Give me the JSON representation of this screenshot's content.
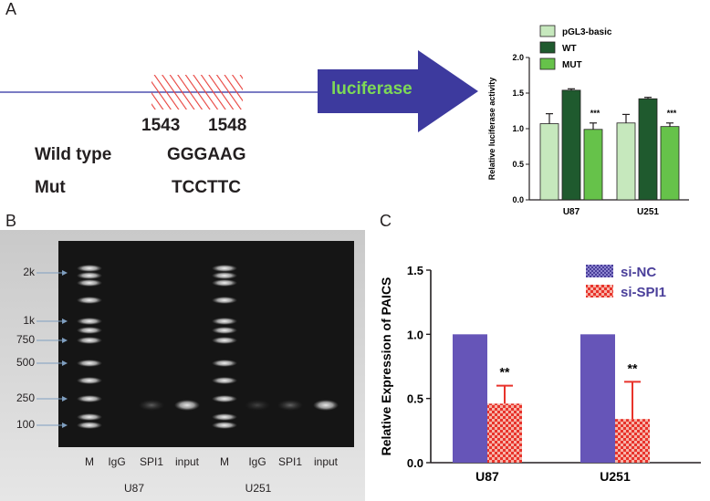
{
  "panels": {
    "a": {
      "letter": "A",
      "positions": [
        "1543",
        "1548"
      ],
      "rows": [
        {
          "label": "Wild type",
          "sequence": "GGGAAG"
        },
        {
          "label": "Mut",
          "sequence": "TCCTTC"
        }
      ],
      "arrow_label": "luciferase"
    },
    "b": {
      "letter": "B",
      "ladder": [
        "2k",
        "1k",
        "750",
        "500",
        "250",
        "100"
      ],
      "lanes": [
        "M",
        "IgG",
        "SPI1",
        "input",
        "M",
        "IgG",
        "SPI1",
        "input"
      ],
      "groups": [
        "U87",
        "U251"
      ]
    },
    "c": {
      "letter": "C"
    }
  },
  "colors": {
    "line_blue": "#2b2fa0",
    "arrow_blue": "#3d3a9e",
    "arrow_text": "#7ed957",
    "hatch_red": "#e8413c",
    "pgl3": "#c6e8bd",
    "wt": "#1f5a2e",
    "mut": "#66c24a",
    "sinc": "#6655b8",
    "spi1": "#e8332b"
  },
  "chart_data": [
    {
      "type": "bar",
      "ylabel": "Relative luciferase activity",
      "categories": [
        "U87",
        "U251"
      ],
      "ylim": [
        0.0,
        2.0
      ],
      "yticks": [
        "0.0",
        "0.5",
        "1.0",
        "1.5",
        "2.0"
      ],
      "legend_position": "top-left",
      "series": [
        {
          "name": "pGL3-basic",
          "values": [
            1.07,
            1.08
          ],
          "errors": [
            0.14,
            0.12
          ]
        },
        {
          "name": "WT",
          "values": [
            1.54,
            1.42
          ],
          "errors": [
            0.02,
            0.02
          ]
        },
        {
          "name": "MUT",
          "values": [
            0.99,
            1.03
          ],
          "errors": [
            0.09,
            0.05
          ]
        }
      ],
      "annotations": [
        "***",
        "***"
      ]
    },
    {
      "type": "bar",
      "ylabel": "Relative Expression of  PAICS",
      "categories": [
        "U87",
        "U251"
      ],
      "ylim": [
        0.0,
        1.5
      ],
      "yticks": [
        "0.0",
        "0.5",
        "1.0",
        "1.5"
      ],
      "legend_position": "top-right",
      "series": [
        {
          "name": "si-NC",
          "values": [
            1.0,
            1.0
          ],
          "errors": [
            0,
            0
          ]
        },
        {
          "name": "si-SPI1",
          "values": [
            0.46,
            0.34
          ],
          "errors": [
            0.14,
            0.29
          ]
        }
      ],
      "annotations": [
        "**",
        "**"
      ]
    }
  ]
}
